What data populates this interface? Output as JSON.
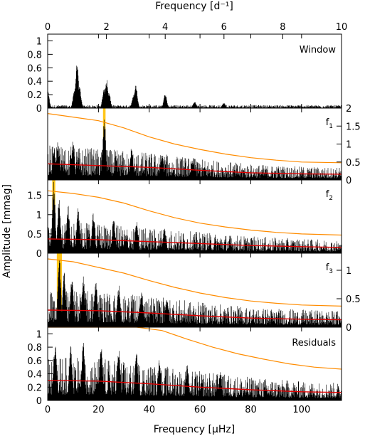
{
  "chart_data": {
    "type": "line",
    "xlabel_bottom": "Frequency [μHz]",
    "xlabel_top": "Frequency [d⁻¹]",
    "ylabel": "Amplitude [mmag]",
    "x_range_uHz": [
      0,
      115.74
    ],
    "x_range_per_day": [
      0,
      10
    ],
    "x_ticks_bottom": [
      0,
      20,
      40,
      60,
      80,
      100
    ],
    "x_ticks_top": [
      0,
      2,
      4,
      6,
      8,
      10
    ],
    "panels": [
      {
        "label": "Window",
        "ylim": [
          0,
          1.1
        ],
        "y_ticks_left": [
          0,
          0.2,
          0.4,
          0.6,
          0.8,
          1
        ],
        "y_ticks_right": [],
        "peaks": [
          [
            0,
            0.28
          ],
          [
            11.57,
            0.68
          ],
          [
            12.5,
            0.35
          ],
          [
            10.6,
            0.3
          ],
          [
            23.15,
            0.44
          ],
          [
            22.2,
            0.3
          ],
          [
            24.1,
            0.25
          ],
          [
            34.72,
            0.37
          ],
          [
            33.8,
            0.2
          ],
          [
            46.3,
            0.22
          ],
          [
            57.87,
            0.1
          ],
          [
            69.4,
            0.08
          ]
        ],
        "noise_level": 0.03,
        "series": [
          {
            "values": "periodogram",
            "color": "#000000"
          }
        ]
      },
      {
        "label": "f1",
        "ylim": [
          0,
          2
        ],
        "y_ticks_left": [],
        "y_ticks_right": [
          0,
          0.5,
          1,
          1.5,
          2
        ],
        "highlight_x": [
          21.8,
          22.8
        ],
        "peaks": [
          [
            22.3,
            1.85
          ],
          [
            10.0,
            1.2
          ],
          [
            4.0,
            1.1
          ],
          [
            2.5,
            0.95
          ],
          [
            33.0,
            0.9
          ],
          [
            45.0,
            0.7
          ],
          [
            57.0,
            0.55
          ]
        ],
        "noise_level": 0.45,
        "significance_orange": [
          [
            0,
            1.85
          ],
          [
            10,
            1.75
          ],
          [
            20,
            1.65
          ],
          [
            30,
            1.45
          ],
          [
            40,
            1.2
          ],
          [
            50,
            1.0
          ],
          [
            60,
            0.85
          ],
          [
            70,
            0.72
          ],
          [
            80,
            0.62
          ],
          [
            90,
            0.55
          ],
          [
            100,
            0.5
          ],
          [
            115.74,
            0.48
          ]
        ],
        "mean_red": [
          [
            0,
            0.45
          ],
          [
            20,
            0.4
          ],
          [
            40,
            0.35
          ],
          [
            60,
            0.27
          ],
          [
            80,
            0.2
          ],
          [
            100,
            0.17
          ],
          [
            115.74,
            0.16
          ]
        ]
      },
      {
        "label": "f2",
        "ylim": [
          0,
          1.9
        ],
        "y_ticks_left": [
          0,
          0.5,
          1,
          1.5
        ],
        "y_ticks_right": [],
        "highlight_x": [
          1.8,
          3.0
        ],
        "peaks": [
          [
            2.4,
            1.85
          ],
          [
            4.5,
            1.4
          ],
          [
            8.0,
            1.3
          ],
          [
            12.0,
            1.2
          ],
          [
            18.0,
            1.05
          ],
          [
            26.0,
            0.95
          ],
          [
            35.0,
            0.85
          ],
          [
            46.0,
            0.7
          ]
        ],
        "noise_level": 0.38,
        "significance_orange": [
          [
            0,
            1.62
          ],
          [
            10,
            1.55
          ],
          [
            20,
            1.45
          ],
          [
            30,
            1.3
          ],
          [
            40,
            1.1
          ],
          [
            50,
            0.92
          ],
          [
            60,
            0.78
          ],
          [
            70,
            0.68
          ],
          [
            80,
            0.6
          ],
          [
            90,
            0.54
          ],
          [
            100,
            0.5
          ],
          [
            115.74,
            0.47
          ]
        ],
        "mean_red": [
          [
            0,
            0.37
          ],
          [
            20,
            0.35
          ],
          [
            40,
            0.3
          ],
          [
            60,
            0.25
          ],
          [
            80,
            0.2
          ],
          [
            100,
            0.17
          ],
          [
            115.74,
            0.15
          ]
        ]
      },
      {
        "label": "f3",
        "ylim": [
          0,
          1.3
        ],
        "y_ticks_left": [],
        "y_ticks_right": [
          0,
          0.5,
          1
        ],
        "highlight_x": [
          3.6,
          5.6
        ],
        "peaks": [
          [
            4.6,
            1.25
          ],
          [
            6.5,
            1.0
          ],
          [
            9.5,
            0.95
          ],
          [
            14.0,
            0.9
          ],
          [
            19.0,
            0.85
          ],
          [
            28.0,
            0.75
          ],
          [
            37.0,
            0.7
          ],
          [
            47.0,
            0.55
          ]
        ],
        "noise_level": 0.3,
        "significance_orange": [
          [
            0,
            1.2
          ],
          [
            10,
            1.15
          ],
          [
            20,
            1.05
          ],
          [
            30,
            0.95
          ],
          [
            40,
            0.82
          ],
          [
            50,
            0.7
          ],
          [
            60,
            0.6
          ],
          [
            70,
            0.52
          ],
          [
            80,
            0.46
          ],
          [
            90,
            0.42
          ],
          [
            100,
            0.39
          ],
          [
            115.74,
            0.37
          ]
        ],
        "mean_red": [
          [
            0,
            0.3
          ],
          [
            20,
            0.29
          ],
          [
            40,
            0.25
          ],
          [
            60,
            0.2
          ],
          [
            80,
            0.16
          ],
          [
            100,
            0.14
          ],
          [
            115.74,
            0.13
          ]
        ]
      },
      {
        "label": "Residuals",
        "ylim": [
          0,
          1.1
        ],
        "y_ticks_left": [
          0,
          0.2,
          0.4,
          0.6,
          0.8,
          1
        ],
        "y_ticks_right": [],
        "peaks": [
          [
            3.0,
            0.9
          ],
          [
            9.0,
            0.85
          ],
          [
            14.0,
            0.95
          ],
          [
            21.0,
            0.88
          ],
          [
            28.0,
            0.82
          ],
          [
            35.0,
            0.75
          ],
          [
            44.0,
            0.65
          ],
          [
            55.0,
            0.55
          ],
          [
            68.0,
            0.48
          ]
        ],
        "noise_level": 0.3,
        "significance_orange": [
          [
            0,
            1.25
          ],
          [
            20,
            1.2
          ],
          [
            35,
            1.12
          ],
          [
            45,
            1.05
          ],
          [
            55,
            0.92
          ],
          [
            65,
            0.8
          ],
          [
            75,
            0.7
          ],
          [
            85,
            0.62
          ],
          [
            95,
            0.55
          ],
          [
            105,
            0.5
          ],
          [
            115.74,
            0.47
          ]
        ],
        "mean_red": [
          [
            0,
            0.3
          ],
          [
            20,
            0.29
          ],
          [
            40,
            0.25
          ],
          [
            60,
            0.2
          ],
          [
            80,
            0.16
          ],
          [
            100,
            0.13
          ],
          [
            115.74,
            0.12
          ]
        ]
      }
    ],
    "colors": {
      "periodogram": "#000000",
      "significance": "#ff8c00",
      "mean_noise": "#e00000",
      "highlight": "#ffc000"
    }
  }
}
